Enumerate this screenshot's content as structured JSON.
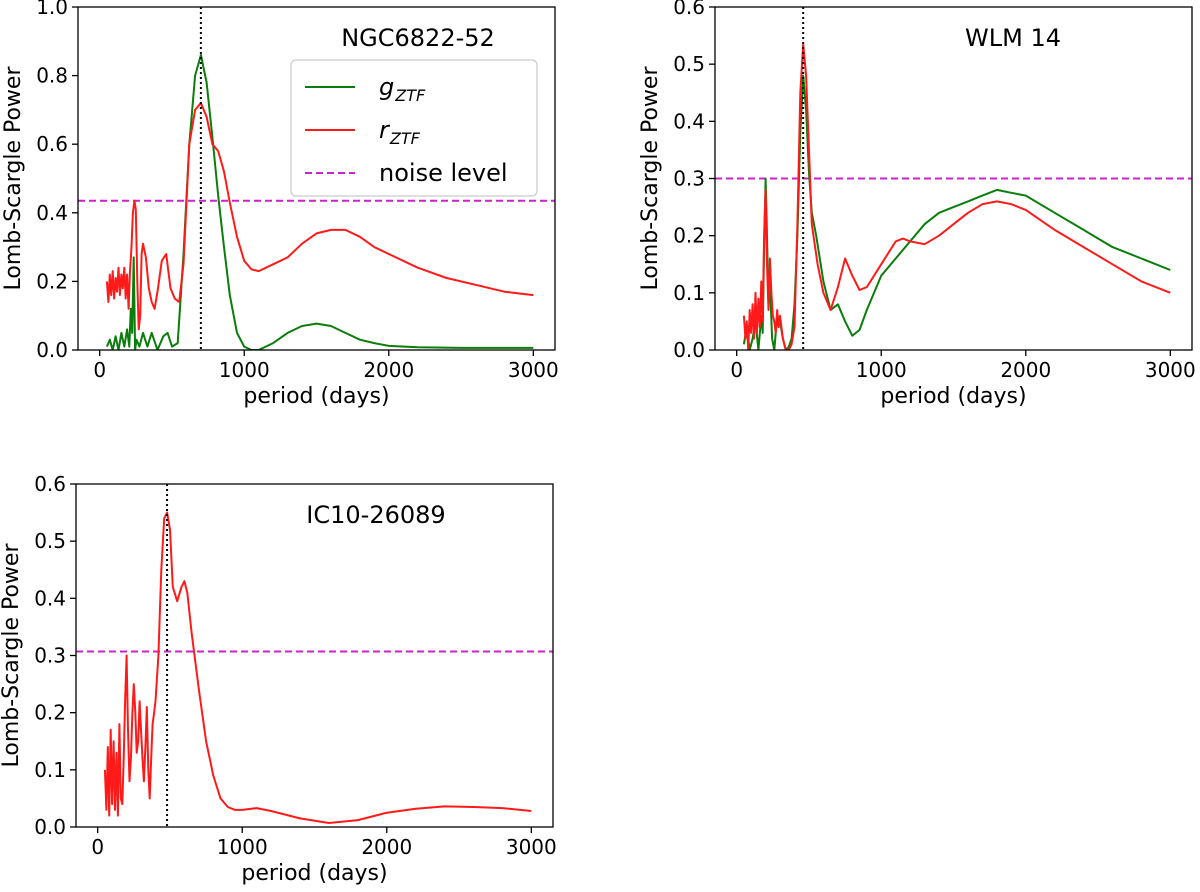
{
  "colors": {
    "g": "#0a7d0a",
    "r": "#ff1a1a",
    "noise": "#cc22cc",
    "peak_marker": "#000000"
  },
  "legend": {
    "placement": "upper-right",
    "g_main": "g",
    "g_sub": "ZTF",
    "r_main": "r",
    "r_sub": "ZTF",
    "noise": "noise level"
  },
  "chart_data": [
    {
      "id": "panel-ngc6822",
      "type": "line",
      "title": "NGC6822-52",
      "xlabel": "period (days)",
      "ylabel": "Lomb-Scargle Power",
      "xlim": [
        -150,
        3150
      ],
      "ylim": [
        0,
        1.0
      ],
      "xticks": [
        0,
        1000,
        2000,
        3000
      ],
      "yticks": [
        0.0,
        0.2,
        0.4,
        0.6,
        0.8,
        1.0
      ],
      "ytick_decimals": 1,
      "noise_level": 0.435,
      "peak_period": 700,
      "legend": true,
      "series": [
        {
          "key": "g",
          "x": [
            50,
            70,
            90,
            110,
            130,
            150,
            170,
            190,
            205,
            215,
            225,
            235,
            245,
            255,
            275,
            300,
            330,
            360,
            400,
            440,
            470,
            500,
            540,
            580,
            620,
            660,
            700,
            740,
            780,
            820,
            860,
            900,
            950,
            1000,
            1050,
            1100,
            1200,
            1300,
            1400,
            1500,
            1600,
            1700,
            1800,
            1900,
            2000,
            2200,
            2500,
            3000
          ],
          "y": [
            0.01,
            0.03,
            0.0,
            0.04,
            0.0,
            0.05,
            0.01,
            0.06,
            0.01,
            0.12,
            0.05,
            0.27,
            0.0,
            0.03,
            0.01,
            0.05,
            0.01,
            0.05,
            0.0,
            0.04,
            0.05,
            0.01,
            0.02,
            0.28,
            0.6,
            0.8,
            0.86,
            0.78,
            0.62,
            0.45,
            0.3,
            0.16,
            0.05,
            0.01,
            0.0,
            0.0,
            0.02,
            0.05,
            0.07,
            0.077,
            0.07,
            0.05,
            0.03,
            0.02,
            0.012,
            0.008,
            0.006,
            0.006
          ]
        },
        {
          "key": "r",
          "x": [
            50,
            60,
            70,
            80,
            90,
            100,
            110,
            120,
            130,
            140,
            150,
            160,
            170,
            180,
            190,
            200,
            210,
            220,
            230,
            240,
            250,
            260,
            270,
            280,
            290,
            300,
            320,
            340,
            360,
            380,
            400,
            430,
            460,
            490,
            520,
            550,
            580,
            620,
            660,
            700,
            740,
            780,
            820,
            860,
            900,
            950,
            1000,
            1050,
            1100,
            1200,
            1300,
            1400,
            1500,
            1600,
            1700,
            1800,
            1900,
            2000,
            2200,
            2400,
            2600,
            2800,
            3000
          ],
          "y": [
            0.2,
            0.14,
            0.22,
            0.16,
            0.23,
            0.15,
            0.21,
            0.17,
            0.24,
            0.16,
            0.22,
            0.18,
            0.24,
            0.15,
            0.22,
            0.12,
            0.23,
            0.3,
            0.4,
            0.435,
            0.41,
            0.2,
            0.06,
            0.1,
            0.28,
            0.31,
            0.27,
            0.18,
            0.14,
            0.12,
            0.17,
            0.26,
            0.28,
            0.18,
            0.15,
            0.14,
            0.25,
            0.6,
            0.7,
            0.72,
            0.68,
            0.6,
            0.58,
            0.52,
            0.43,
            0.33,
            0.26,
            0.235,
            0.23,
            0.25,
            0.27,
            0.31,
            0.34,
            0.35,
            0.35,
            0.33,
            0.3,
            0.28,
            0.24,
            0.21,
            0.19,
            0.17,
            0.16
          ]
        }
      ]
    },
    {
      "id": "panel-wlm14",
      "type": "line",
      "title": "WLM 14",
      "xlabel": "period (days)",
      "ylabel": "Lomb-Scargle Power",
      "xlim": [
        -150,
        3150
      ],
      "ylim": [
        0,
        0.6
      ],
      "xticks": [
        0,
        1000,
        2000,
        3000
      ],
      "yticks": [
        0.0,
        0.1,
        0.2,
        0.3,
        0.4,
        0.5,
        0.6
      ],
      "ytick_decimals": 1,
      "noise_level": 0.3,
      "peak_period": 460,
      "legend": false,
      "series": [
        {
          "key": "g",
          "x": [
            50,
            70,
            90,
            110,
            130,
            150,
            170,
            180,
            190,
            200,
            210,
            220,
            230,
            245,
            260,
            280,
            300,
            320,
            340,
            360,
            380,
            400,
            420,
            440,
            460,
            480,
            500,
            520,
            550,
            600,
            650,
            700,
            750,
            800,
            850,
            900,
            1000,
            1100,
            1200,
            1300,
            1400,
            1500,
            1600,
            1700,
            1800,
            1900,
            2000,
            2200,
            2400,
            2600,
            2800,
            3000
          ],
          "y": [
            0.01,
            0.04,
            0.0,
            0.02,
            0.05,
            0.0,
            0.06,
            0.03,
            0.18,
            0.3,
            0.2,
            0.08,
            0.12,
            0.02,
            0.0,
            0.06,
            0.05,
            0.02,
            0.0,
            0.005,
            0.02,
            0.08,
            0.2,
            0.38,
            0.48,
            0.42,
            0.31,
            0.24,
            0.2,
            0.12,
            0.07,
            0.08,
            0.05,
            0.025,
            0.035,
            0.07,
            0.13,
            0.16,
            0.19,
            0.22,
            0.24,
            0.25,
            0.26,
            0.27,
            0.28,
            0.275,
            0.27,
            0.24,
            0.21,
            0.18,
            0.16,
            0.14
          ]
        },
        {
          "key": "r",
          "x": [
            50,
            60,
            70,
            80,
            90,
            100,
            110,
            120,
            130,
            140,
            150,
            160,
            170,
            180,
            190,
            200,
            210,
            220,
            230,
            240,
            250,
            260,
            270,
            280,
            290,
            300,
            320,
            340,
            360,
            380,
            400,
            420,
            440,
            460,
            480,
            500,
            520,
            560,
            600,
            650,
            700,
            750,
            800,
            850,
            900,
            1000,
            1100,
            1150,
            1200,
            1300,
            1400,
            1500,
            1600,
            1700,
            1800,
            1900,
            2000,
            2200,
            2400,
            2600,
            2800,
            3000
          ],
          "y": [
            0.06,
            0.02,
            0.05,
            0.0,
            0.07,
            0.03,
            0.08,
            0.02,
            0.1,
            0.03,
            0.09,
            0.04,
            0.12,
            0.05,
            0.2,
            0.28,
            0.15,
            0.07,
            0.16,
            0.1,
            0.06,
            0.05,
            0.03,
            0.07,
            0.04,
            0.06,
            0.02,
            0.0,
            0.0,
            0.01,
            0.04,
            0.22,
            0.45,
            0.535,
            0.48,
            0.35,
            0.22,
            0.15,
            0.1,
            0.07,
            0.11,
            0.16,
            0.13,
            0.105,
            0.11,
            0.15,
            0.19,
            0.195,
            0.19,
            0.185,
            0.2,
            0.22,
            0.24,
            0.255,
            0.26,
            0.255,
            0.245,
            0.21,
            0.18,
            0.15,
            0.12,
            0.1
          ]
        }
      ]
    },
    {
      "id": "panel-ic10",
      "type": "line",
      "title": "IC10-26089",
      "xlabel": "period (days)",
      "ylabel": "Lomb-Scargle Power",
      "xlim": [
        -150,
        3150
      ],
      "ylim": [
        0,
        0.6
      ],
      "xticks": [
        0,
        1000,
        2000,
        3000
      ],
      "yticks": [
        0.0,
        0.1,
        0.2,
        0.3,
        0.4,
        0.5,
        0.6
      ],
      "ytick_decimals": 1,
      "noise_level": 0.307,
      "peak_period": 480,
      "legend": false,
      "series": [
        {
          "key": "r",
          "x": [
            50,
            60,
            70,
            80,
            90,
            100,
            110,
            120,
            130,
            140,
            150,
            160,
            170,
            180,
            190,
            200,
            210,
            220,
            230,
            240,
            250,
            260,
            270,
            280,
            290,
            300,
            310,
            320,
            330,
            340,
            350,
            360,
            370,
            380,
            390,
            400,
            420,
            440,
            460,
            480,
            500,
            520,
            550,
            580,
            600,
            620,
            650,
            700,
            750,
            800,
            850,
            900,
            950,
            1000,
            1100,
            1200,
            1400,
            1600,
            1800,
            2000,
            2200,
            2400,
            2600,
            2800,
            3000
          ],
          "y": [
            0.1,
            0.03,
            0.14,
            0.02,
            0.17,
            0.04,
            0.15,
            0.03,
            0.13,
            0.02,
            0.18,
            0.05,
            0.04,
            0.12,
            0.22,
            0.3,
            0.17,
            0.08,
            0.12,
            0.2,
            0.25,
            0.2,
            0.13,
            0.15,
            0.22,
            0.17,
            0.12,
            0.08,
            0.14,
            0.21,
            0.1,
            0.05,
            0.12,
            0.18,
            0.2,
            0.22,
            0.3,
            0.45,
            0.54,
            0.55,
            0.52,
            0.42,
            0.395,
            0.42,
            0.43,
            0.41,
            0.34,
            0.24,
            0.15,
            0.09,
            0.05,
            0.035,
            0.03,
            0.03,
            0.033,
            0.028,
            0.015,
            0.007,
            0.012,
            0.025,
            0.032,
            0.036,
            0.035,
            0.033,
            0.028
          ]
        }
      ]
    }
  ]
}
